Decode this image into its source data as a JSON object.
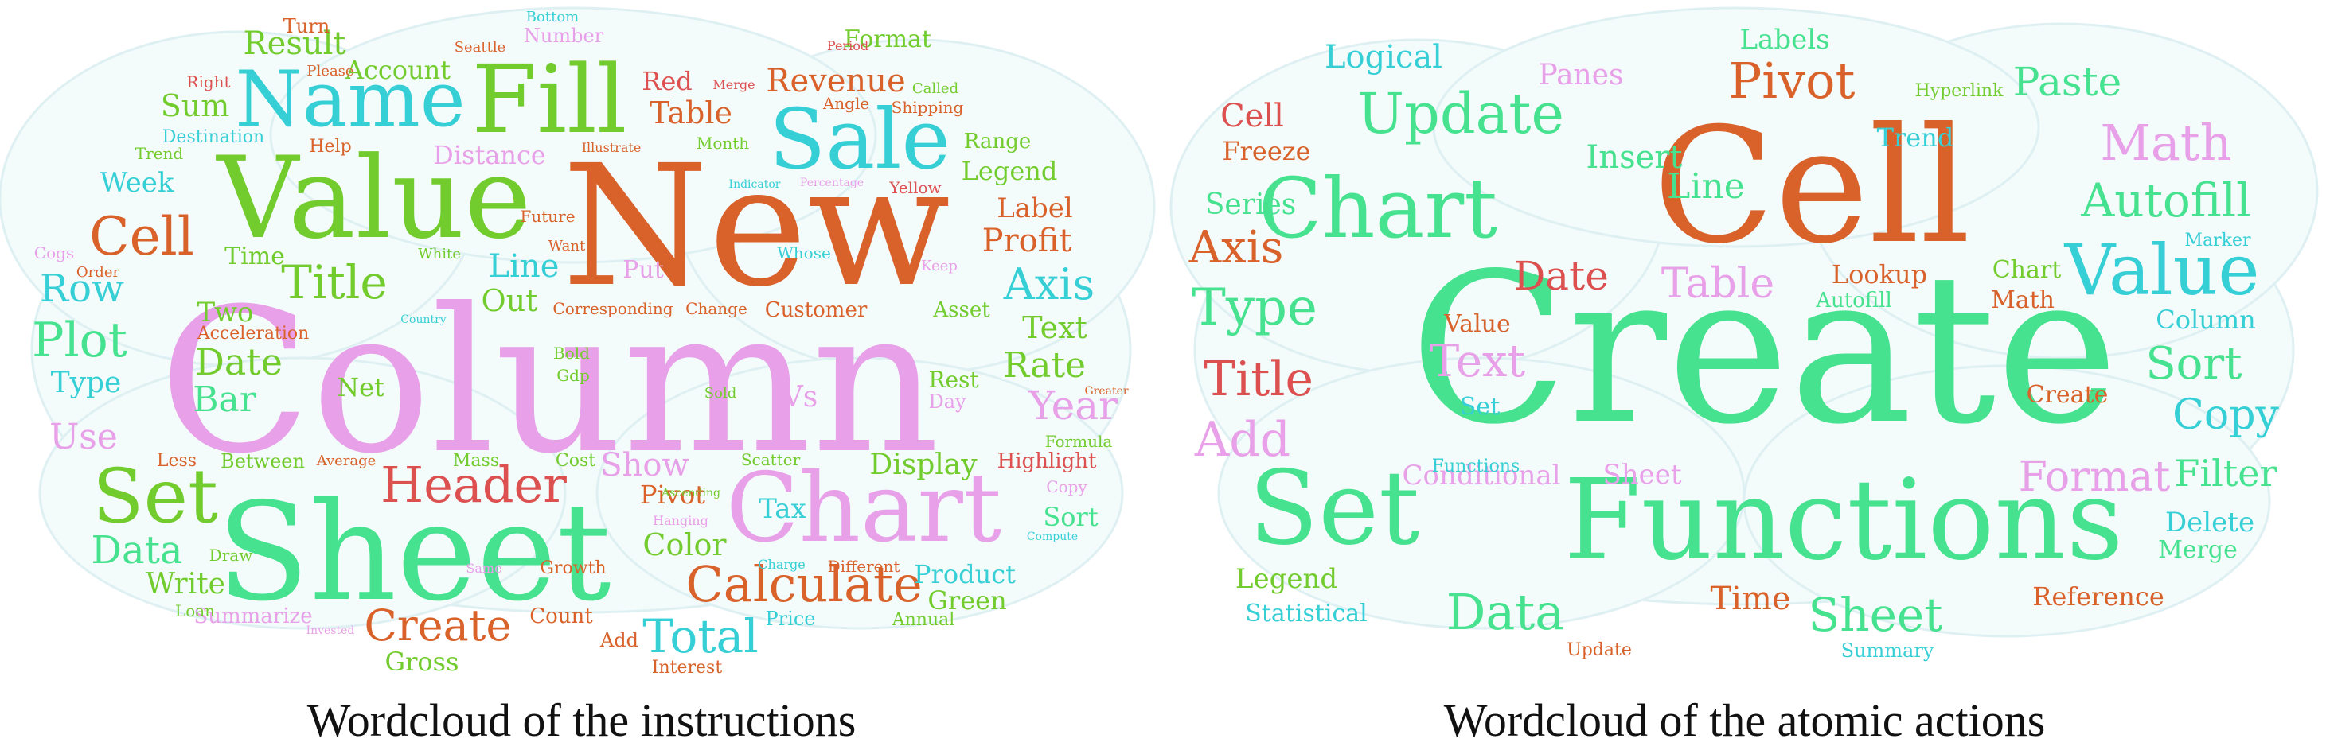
{
  "colors": {
    "pink": "#e8a0e8",
    "orange": "#d9622b",
    "green": "#46e28f",
    "teal": "#36cfd6",
    "lime": "#72cc2e",
    "red": "#dd5050",
    "cloud": "#f3fbfb"
  },
  "clouds": [
    {
      "caption": "Wordcloud of the instructions",
      "words": [
        {
          "text": "Column",
          "c": "pink"
        },
        {
          "text": "New",
          "c": "orange"
        },
        {
          "text": "Sheet",
          "c": "green"
        },
        {
          "text": "Value",
          "c": "lime"
        },
        {
          "text": "Chart",
          "c": "pink"
        },
        {
          "text": "Fill",
          "c": "lime"
        },
        {
          "text": "Sale",
          "c": "teal"
        },
        {
          "text": "Name",
          "c": "teal"
        },
        {
          "text": "Set",
          "c": "lime"
        },
        {
          "text": "Header",
          "c": "red"
        },
        {
          "text": "Calculate",
          "c": "orange"
        },
        {
          "text": "Cell",
          "c": "orange"
        },
        {
          "text": "Title",
          "c": "lime"
        },
        {
          "text": "Total",
          "c": "teal"
        },
        {
          "text": "Plot",
          "c": "green"
        },
        {
          "text": "Axis",
          "c": "teal"
        },
        {
          "text": "Create",
          "c": "orange"
        },
        {
          "text": "Data",
          "c": "green"
        },
        {
          "text": "Year",
          "c": "pink"
        },
        {
          "text": "Date",
          "c": "lime"
        },
        {
          "text": "Bar",
          "c": "green"
        },
        {
          "text": "Row",
          "c": "teal"
        },
        {
          "text": "Rate",
          "c": "lime"
        },
        {
          "text": "Line",
          "c": "teal"
        },
        {
          "text": "Out",
          "c": "lime"
        },
        {
          "text": "Use",
          "c": "pink"
        },
        {
          "text": "Revenue",
          "c": "orange"
        },
        {
          "text": "Result",
          "c": "lime"
        },
        {
          "text": "Table",
          "c": "orange"
        },
        {
          "text": "Profit",
          "c": "orange"
        },
        {
          "text": "Show",
          "c": "pink"
        },
        {
          "text": "Color",
          "c": "lime"
        },
        {
          "text": "Display",
          "c": "lime"
        },
        {
          "text": "Account",
          "c": "lime"
        },
        {
          "text": "Sum",
          "c": "lime"
        },
        {
          "text": "Week",
          "c": "teal"
        },
        {
          "text": "Label",
          "c": "orange"
        },
        {
          "text": "Legend",
          "c": "lime"
        },
        {
          "text": "Text",
          "c": "lime"
        },
        {
          "text": "Distance",
          "c": "pink"
        },
        {
          "text": "Format",
          "c": "lime"
        },
        {
          "text": "Red",
          "c": "red"
        },
        {
          "text": "Two",
          "c": "lime"
        },
        {
          "text": "Time",
          "c": "lime"
        },
        {
          "text": "Net",
          "c": "lime"
        },
        {
          "text": "Type",
          "c": "teal"
        },
        {
          "text": "Pivot",
          "c": "orange"
        },
        {
          "text": "Tax",
          "c": "teal"
        },
        {
          "text": "Write",
          "c": "lime"
        },
        {
          "text": "Product",
          "c": "teal"
        },
        {
          "text": "Green",
          "c": "lime"
        },
        {
          "text": "Gross",
          "c": "lime"
        },
        {
          "text": "Vs",
          "c": "pink"
        },
        {
          "text": "Put",
          "c": "pink"
        },
        {
          "text": "Customer",
          "c": "orange"
        },
        {
          "text": "Range",
          "c": "lime"
        },
        {
          "text": "Sort",
          "c": "green"
        },
        {
          "text": "Rest",
          "c": "lime"
        },
        {
          "text": "Asset",
          "c": "lime"
        },
        {
          "text": "Highlight",
          "c": "red"
        },
        {
          "text": "Summarize",
          "c": "pink"
        },
        {
          "text": "Count",
          "c": "orange"
        },
        {
          "text": "Add",
          "c": "orange"
        },
        {
          "text": "Interest",
          "c": "orange"
        },
        {
          "text": "Price",
          "c": "teal"
        },
        {
          "text": "Annual",
          "c": "lime"
        },
        {
          "text": "Turn",
          "c": "orange"
        },
        {
          "text": "Number",
          "c": "pink"
        },
        {
          "text": "Bottom",
          "c": "teal"
        },
        {
          "text": "Seattle",
          "c": "orange"
        },
        {
          "text": "Right",
          "c": "red"
        },
        {
          "text": "Please",
          "c": "orange"
        },
        {
          "text": "Destination",
          "c": "teal"
        },
        {
          "text": "Help",
          "c": "orange"
        },
        {
          "text": "Trend",
          "c": "lime"
        },
        {
          "text": "Cogs",
          "c": "pink"
        },
        {
          "text": "Order",
          "c": "orange"
        },
        {
          "text": "Acceleration",
          "c": "orange"
        },
        {
          "text": "Future",
          "c": "orange"
        },
        {
          "text": "Want",
          "c": "orange"
        },
        {
          "text": "White",
          "c": "lime"
        },
        {
          "text": "Whose",
          "c": "teal"
        },
        {
          "text": "Keep",
          "c": "pink"
        },
        {
          "text": "Day",
          "c": "pink"
        },
        {
          "text": "Corresponding",
          "c": "orange"
        },
        {
          "text": "Change",
          "c": "orange"
        },
        {
          "text": "Mass",
          "c": "lime"
        },
        {
          "text": "Cost",
          "c": "lime"
        },
        {
          "text": "Between",
          "c": "lime"
        },
        {
          "text": "Less",
          "c": "orange"
        },
        {
          "text": "Average",
          "c": "orange"
        },
        {
          "text": "Scatter",
          "c": "lime"
        },
        {
          "text": "Draw",
          "c": "lime"
        },
        {
          "text": "Loan",
          "c": "lime"
        },
        {
          "text": "Growth",
          "c": "orange"
        },
        {
          "text": "Different",
          "c": "orange"
        },
        {
          "text": "Charge",
          "c": "teal"
        },
        {
          "text": "Same",
          "c": "pink"
        },
        {
          "text": "Hanging",
          "c": "pink"
        },
        {
          "text": "Gdp",
          "c": "lime"
        },
        {
          "text": "Bold",
          "c": "lime"
        },
        {
          "text": "Sold",
          "c": "lime"
        },
        {
          "text": "Copy",
          "c": "pink"
        },
        {
          "text": "Compute",
          "c": "teal"
        },
        {
          "text": "Formula",
          "c": "lime"
        },
        {
          "text": "Greater",
          "c": "orange"
        },
        {
          "text": "Month",
          "c": "lime"
        },
        {
          "text": "Indicator",
          "c": "teal"
        },
        {
          "text": "Percentage",
          "c": "pink"
        },
        {
          "text": "Yellow",
          "c": "red"
        },
        {
          "text": "Angle",
          "c": "orange"
        },
        {
          "text": "Shipping",
          "c": "orange"
        },
        {
          "text": "Called",
          "c": "lime"
        },
        {
          "text": "Period",
          "c": "red"
        },
        {
          "text": "Merge",
          "c": "red"
        },
        {
          "text": "Illustrate",
          "c": "orange"
        },
        {
          "text": "Country",
          "c": "teal"
        },
        {
          "text": "Invested",
          "c": "pink"
        },
        {
          "text": "Ascending",
          "c": "lime"
        }
      ]
    },
    {
      "caption": "Wordcloud of the atomic actions",
      "words": [
        {
          "text": "Create",
          "c": "green"
        },
        {
          "text": "Cell",
          "c": "orange"
        },
        {
          "text": "Functions",
          "c": "green"
        },
        {
          "text": "Set",
          "c": "green"
        },
        {
          "text": "Chart",
          "c": "green"
        },
        {
          "text": "Value",
          "c": "teal"
        },
        {
          "text": "Update",
          "c": "green"
        },
        {
          "text": "Pivot",
          "c": "orange"
        },
        {
          "text": "Math",
          "c": "pink"
        },
        {
          "text": "Autofill",
          "c": "green"
        },
        {
          "text": "Type",
          "c": "green"
        },
        {
          "text": "Axis",
          "c": "orange"
        },
        {
          "text": "Title",
          "c": "red"
        },
        {
          "text": "Sort",
          "c": "green"
        },
        {
          "text": "Data",
          "c": "green"
        },
        {
          "text": "Sheet",
          "c": "green"
        },
        {
          "text": "Format",
          "c": "pink"
        },
        {
          "text": "Text",
          "c": "pink"
        },
        {
          "text": "Add",
          "c": "pink"
        },
        {
          "text": "Copy",
          "c": "teal"
        },
        {
          "text": "Table",
          "c": "pink"
        },
        {
          "text": "Date",
          "c": "red"
        },
        {
          "text": "Paste",
          "c": "green"
        },
        {
          "text": "Filter",
          "c": "green"
        },
        {
          "text": "Line",
          "c": "green"
        },
        {
          "text": "Insert",
          "c": "green"
        },
        {
          "text": "Logical",
          "c": "teal"
        },
        {
          "text": "Time",
          "c": "orange"
        },
        {
          "text": "Cell",
          "c": "red"
        },
        {
          "text": "Delete",
          "c": "teal"
        },
        {
          "text": "Conditional",
          "c": "pink"
        },
        {
          "text": "Sheet",
          "c": "pink"
        },
        {
          "text": "Legend",
          "c": "lime"
        },
        {
          "text": "Series",
          "c": "green"
        },
        {
          "text": "Panes",
          "c": "pink"
        },
        {
          "text": "Labels",
          "c": "green"
        },
        {
          "text": "Lookup",
          "c": "orange"
        },
        {
          "text": "Trend",
          "c": "teal"
        },
        {
          "text": "Freeze",
          "c": "orange"
        },
        {
          "text": "Column",
          "c": "teal"
        },
        {
          "text": "Chart",
          "c": "lime"
        },
        {
          "text": "Math",
          "c": "orange"
        },
        {
          "text": "Statistical",
          "c": "teal"
        },
        {
          "text": "Reference",
          "c": "orange"
        },
        {
          "text": "Merge",
          "c": "green"
        },
        {
          "text": "Create",
          "c": "orange"
        },
        {
          "text": "Autofill",
          "c": "green"
        },
        {
          "text": "Value",
          "c": "orange"
        },
        {
          "text": "Set",
          "c": "teal"
        },
        {
          "text": "Hyperlink",
          "c": "lime"
        },
        {
          "text": "Marker",
          "c": "teal"
        },
        {
          "text": "Functions",
          "c": "teal"
        },
        {
          "text": "Summary",
          "c": "teal"
        },
        {
          "text": "Update",
          "c": "orange"
        }
      ]
    }
  ]
}
